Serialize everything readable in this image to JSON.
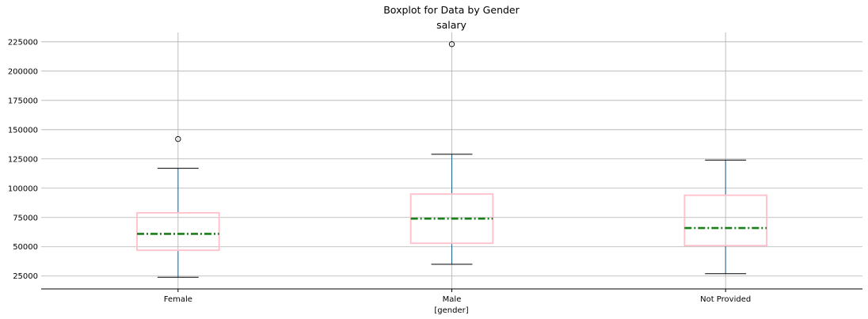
{
  "chart_data": {
    "type": "boxplot",
    "title": "Boxplot for Data by Gender",
    "subtitle": "salary",
    "xlabel": "[gender]",
    "ylabel": "",
    "categories": [
      "Female",
      "Male",
      "Not Provided"
    ],
    "boxes": [
      {
        "category": "Female",
        "whisker_low": 24000,
        "q1": 47000,
        "median": 61000,
        "q3": 79000,
        "whisker_high": 117000,
        "outliers": [
          142000
        ]
      },
      {
        "category": "Male",
        "whisker_low": 35000,
        "q1": 53000,
        "median": 74000,
        "q3": 95000,
        "whisker_high": 129000,
        "outliers": [
          223000
        ]
      },
      {
        "category": "Not Provided",
        "whisker_low": 27000,
        "q1": 51000,
        "median": 66000,
        "q3": 94000,
        "whisker_high": 124000,
        "outliers": []
      }
    ],
    "yticks": [
      25000,
      50000,
      75000,
      100000,
      125000,
      150000,
      175000,
      200000,
      225000
    ],
    "ylim": [
      14000,
      233000
    ],
    "grid": true,
    "colors": {
      "box": "#ffc0cb",
      "median": "#1a7f1a",
      "whisker": "#1f5f8b",
      "cap": "#000000",
      "grid": "#b0b0b0",
      "axis": "#000000"
    }
  }
}
